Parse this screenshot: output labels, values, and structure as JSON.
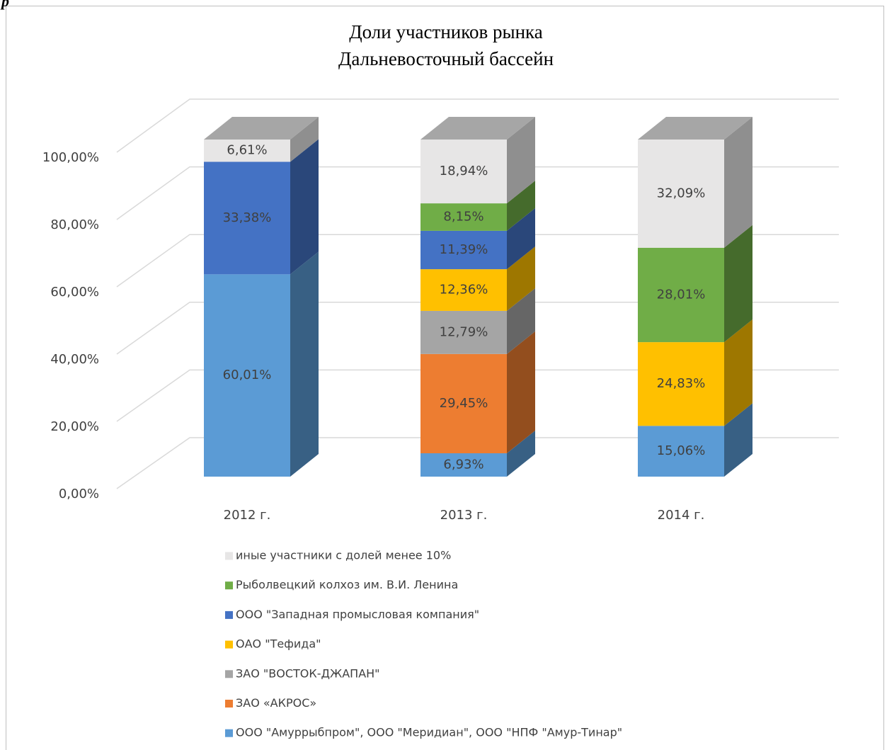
{
  "heading_fragment": "р",
  "chart_data": {
    "type": "bar3d_stacked",
    "title": "Доли участников рынка",
    "subtitle": "Дальневосточный бассейн",
    "categories": [
      "2012 г.",
      "2013 г.",
      "2014 г."
    ],
    "ylim": [
      0,
      100
    ],
    "yticks": [
      {
        "value": 0,
        "label": "0,00%"
      },
      {
        "value": 20,
        "label": "20,00%"
      },
      {
        "value": 40,
        "label": "40,00%"
      },
      {
        "value": 60,
        "label": "60,00%"
      },
      {
        "value": 80,
        "label": "80,00%"
      },
      {
        "value": 100,
        "label": "100,00%"
      }
    ],
    "grid": true,
    "legend": "bottom",
    "series": [
      {
        "name": "ООО \"Амуррыбпром\",  ООО \"Меридиан\", ООО \"НПФ \"Амур-Тинар\"",
        "color": "#5b9bd5",
        "values": [
          60.01,
          6.93,
          15.06
        ],
        "value_labels": [
          "60,01%",
          "6,93%",
          "15,06%"
        ]
      },
      {
        "name": "ЗАО «АКРОС»",
        "color": "#ed7d31",
        "values": [
          null,
          29.45,
          null
        ],
        "value_labels": [
          null,
          "29,45%",
          null
        ]
      },
      {
        "name": "ЗАО \"ВОСТОК-ДЖАПАН\"",
        "color": "#a5a5a5",
        "values": [
          null,
          12.79,
          null
        ],
        "value_labels": [
          null,
          "12,79%",
          null
        ]
      },
      {
        "name": "ОАО \"Тефида\"",
        "color": "#ffc000",
        "values": [
          null,
          12.36,
          24.83
        ],
        "value_labels": [
          null,
          "12,36%",
          "24,83%"
        ]
      },
      {
        "name": "ООО \"Западная промысловая компания\"",
        "color": "#4472c4",
        "values": [
          33.38,
          11.39,
          null
        ],
        "value_labels": [
          "33,38%",
          "11,39%",
          null
        ]
      },
      {
        "name": "Рыболвецкий колхоз им. В.И. Ленина",
        "color": "#70ad47",
        "values": [
          null,
          8.15,
          28.01
        ],
        "value_labels": [
          null,
          "8,15%",
          "28,01%"
        ]
      },
      {
        "name": "иные участники с долей менее 10%",
        "color": "#e7e6e6",
        "values": [
          6.61,
          18.94,
          32.09
        ],
        "value_labels": [
          "6,61%",
          "18,94%",
          "32,09%"
        ]
      }
    ]
  }
}
